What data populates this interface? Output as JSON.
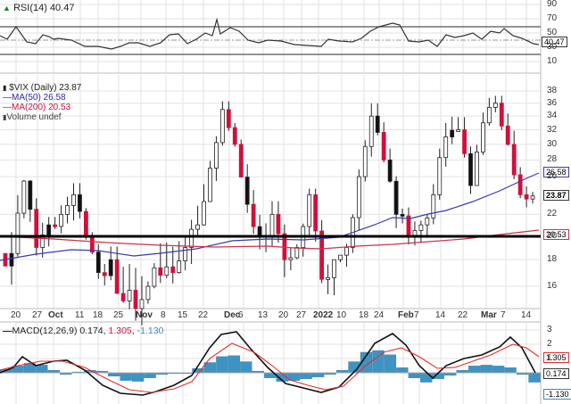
{
  "colors": {
    "grid": "#e2e2e2",
    "up_candle": "#ffffff",
    "up_outline": "#222222",
    "down_candle": "#d0103a",
    "black_candle": "#111111",
    "ma50": "#3a3ab0",
    "ma200": "#d0304a",
    "macd_line": "#111111",
    "signal_line": "#e03030",
    "histogram": "#3f93c3",
    "support_line": "#000000"
  },
  "rsi": {
    "label": "RSI(14) 40.47",
    "value_tag": "40.47",
    "levels": [
      "90",
      "70",
      "50",
      "30",
      "10"
    ]
  },
  "price": {
    "title": "$VIX (Daily) 23.87",
    "ma50_label": "MA(50) 26.58",
    "ma200_label": "MA(200) 20.53",
    "volume_label": "Volume undef",
    "close_tag": "23.87",
    "ma50_tag": "26.58",
    "ma200_tag": "20.53",
    "axis": [
      "38",
      "36",
      "34",
      "32",
      "30",
      "28",
      "26",
      "22",
      "20",
      "18",
      "16"
    ]
  },
  "dates": [
    "20",
    "27",
    "Oct",
    "11",
    "18",
    "25",
    "Nov",
    "8",
    "15",
    "22",
    "Dec",
    "6",
    "13",
    "20",
    "27",
    "2022",
    "10",
    "18",
    "24",
    "Feb",
    "7",
    "14",
    "22",
    "Mar",
    "7",
    "14"
  ],
  "macd": {
    "label_prefix": "MACD(12,26,9) 0.174",
    "label_signal": "1.305",
    "label_hist": "-1.130",
    "macd_tag": "0.174",
    "signal_tag": "1.305",
    "hist_tag": "-1.130",
    "axis": [
      "3",
      "2",
      "1"
    ]
  },
  "chart_data": [
    {
      "type": "line",
      "title": "RSI(14)",
      "series": [
        {
          "name": "RSI(14)",
          "last": 40.47
        }
      ],
      "ylim": [
        0,
        100
      ],
      "reference_lines": [
        70,
        50,
        30
      ]
    },
    {
      "type": "candlestick",
      "title": "$VIX (Daily) 23.87",
      "ylim": [
        14,
        40
      ],
      "x_ticks": [
        "20",
        "27",
        "Oct",
        "11",
        "18",
        "25",
        "Nov",
        "8",
        "15",
        "22",
        "Dec",
        "6",
        "13",
        "20",
        "27",
        "2022",
        "10",
        "18",
        "24",
        "Feb",
        "7",
        "14",
        "22",
        "Mar",
        "7",
        "14"
      ],
      "series": [
        {
          "name": "$VIX close",
          "last": 23.87
        },
        {
          "name": "MA(50)",
          "last": 26.58
        },
        {
          "name": "MA(200)",
          "last": 20.53
        }
      ],
      "annotations": [
        {
          "type": "horizontal_line",
          "y": 20,
          "label": "support"
        }
      ],
      "close_approx": [
        18.5,
        25.5,
        19,
        21,
        22,
        24,
        20,
        17,
        18,
        15,
        14.5,
        16,
        16.8,
        17,
        19,
        21,
        27,
        35,
        30,
        23,
        20,
        22,
        18,
        19,
        24,
        16.5,
        18,
        19,
        26,
        34,
        28,
        22,
        20,
        21,
        24,
        31,
        32,
        25,
        33,
        36,
        30,
        24,
        23.87
      ]
    },
    {
      "type": "line",
      "title": "MACD(12,26,9)",
      "series": [
        {
          "name": "MACD",
          "last": 0.174
        },
        {
          "name": "Signal",
          "last": 1.305
        },
        {
          "name": "Histogram",
          "last": -1.13
        }
      ],
      "ylim": [
        -1.5,
        3.5
      ]
    }
  ]
}
